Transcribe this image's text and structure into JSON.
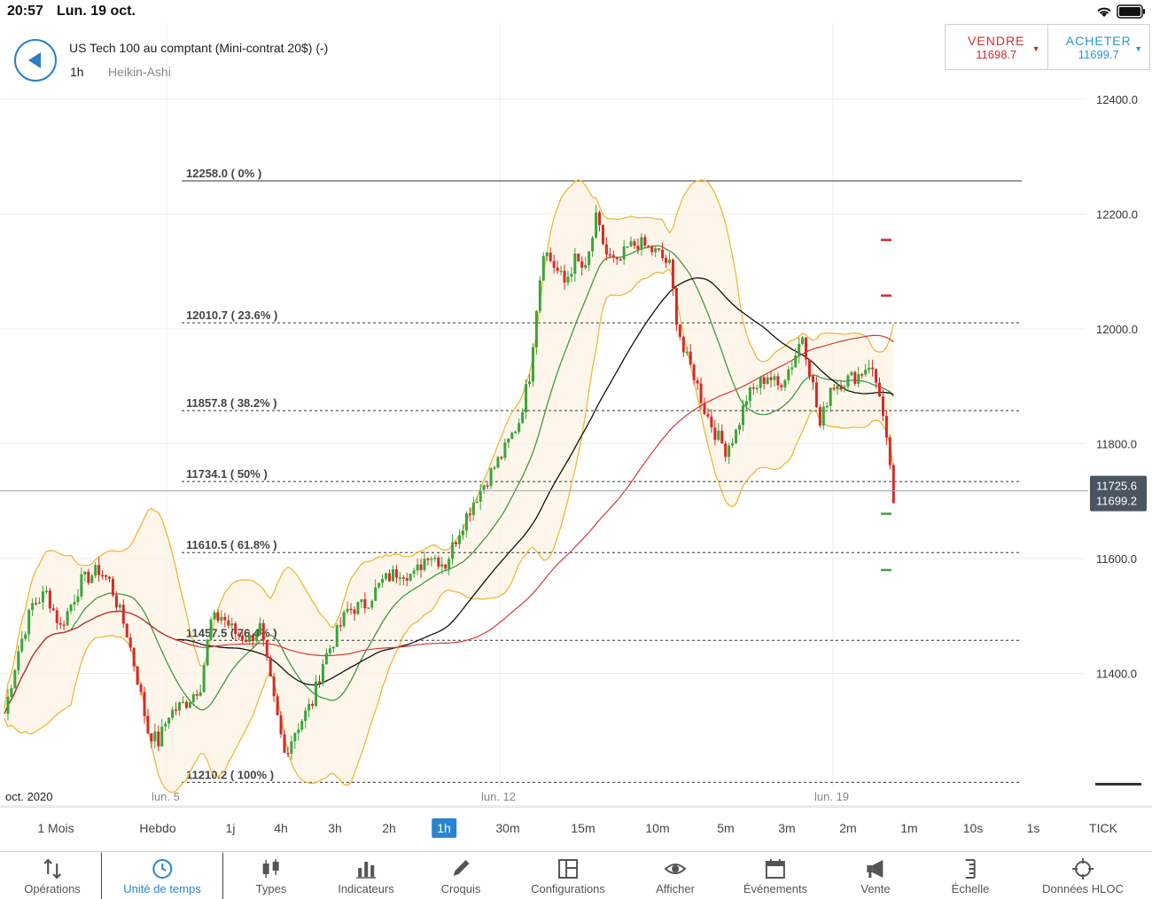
{
  "status": {
    "time": "20:57",
    "date": "Lun. 19 oct."
  },
  "instrument": {
    "name": "US Tech 100 au comptant (Mini-contrat 20$) (-)",
    "timeframe": "1h",
    "chart_type": "Heikin-Ashi"
  },
  "trade": {
    "sell": {
      "label": "VENDRE",
      "price": "11698.7"
    },
    "buy": {
      "label": "ACHETER",
      "price": "11699.7"
    }
  },
  "colors": {
    "accent": "#2a85d0",
    "sell": "#d42a2a",
    "buy": "#2a95d4",
    "candle_up": "#3aa53a",
    "candle_down": "#d42a2a",
    "bollinger": "#f0b22e",
    "ma_green": "#3f9a4a",
    "ma_black": "#111111",
    "ma_red": "#d43a3a"
  },
  "chart_data": {
    "type": "candlestick",
    "title": "US Tech 100 au comptant (Mini-contrat 20$) (-)",
    "ylim": [
      11200,
      12420
    ],
    "y_ticks": [
      "12400.0",
      "12200.0",
      "12000.0",
      "11800.0",
      "11600.0",
      "11400.0"
    ],
    "x_ticks": [
      "oct. 2020",
      "lun. 5",
      "lun. 12",
      "lun. 19"
    ],
    "current_price": {
      "top": "11725.6",
      "bottom": "11699.2"
    },
    "fibonacci_levels": [
      {
        "price": 12258.0,
        "label": "12258.0 ( 0% )"
      },
      {
        "price": 12010.7,
        "label": "12010.7 ( 23.6% )"
      },
      {
        "price": 11857.8,
        "label": "11857.8 ( 38.2% )"
      },
      {
        "price": 11734.1,
        "label": "11734.1 ( 50% )"
      },
      {
        "price": 11610.5,
        "label": "11610.5 ( 61.8% )"
      },
      {
        "price": 11457.5,
        "label": "11457.5 ( 76.4% )"
      },
      {
        "price": 11210.2,
        "label": "11210.2 ( 100% )"
      }
    ],
    "price_path": [
      [
        0,
        11330
      ],
      [
        4,
        11440
      ],
      [
        8,
        11520
      ],
      [
        12,
        11540
      ],
      [
        16,
        11480
      ],
      [
        22,
        11560
      ],
      [
        27,
        11580
      ],
      [
        30,
        11560
      ],
      [
        35,
        11470
      ],
      [
        38,
        11390
      ],
      [
        41,
        11300
      ],
      [
        44,
        11280
      ],
      [
        47,
        11330
      ],
      [
        52,
        11350
      ],
      [
        56,
        11380
      ],
      [
        59,
        11490
      ],
      [
        62,
        11500
      ],
      [
        66,
        11470
      ],
      [
        70,
        11460
      ],
      [
        73,
        11480
      ],
      [
        77,
        11350
      ],
      [
        80,
        11260
      ],
      [
        83,
        11300
      ],
      [
        88,
        11350
      ],
      [
        91,
        11420
      ],
      [
        95,
        11470
      ],
      [
        98,
        11510
      ],
      [
        103,
        11520
      ],
      [
        108,
        11560
      ],
      [
        113,
        11580
      ],
      [
        117,
        11570
      ],
      [
        121,
        11610
      ],
      [
        126,
        11590
      ],
      [
        130,
        11650
      ],
      [
        134,
        11700
      ],
      [
        139,
        11750
      ],
      [
        143,
        11790
      ],
      [
        147,
        11840
      ],
      [
        150,
        11920
      ],
      [
        152,
        12040
      ],
      [
        154,
        12140
      ],
      [
        157,
        12110
      ],
      [
        160,
        12080
      ],
      [
        163,
        12120
      ],
      [
        166,
        12100
      ],
      [
        169,
        12190
      ],
      [
        172,
        12130
      ],
      [
        175,
        12110
      ],
      [
        178,
        12140
      ],
      [
        181,
        12150
      ],
      [
        184,
        12140
      ],
      [
        187,
        12130
      ],
      [
        190,
        12110
      ],
      [
        192,
        12020
      ],
      [
        194,
        11960
      ],
      [
        197,
        11920
      ],
      [
        200,
        11860
      ],
      [
        203,
        11820
      ],
      [
        206,
        11790
      ],
      [
        209,
        11820
      ],
      [
        212,
        11880
      ],
      [
        215,
        11900
      ],
      [
        218,
        11920
      ],
      [
        221,
        11900
      ],
      [
        225,
        11940
      ],
      [
        228,
        11990
      ],
      [
        231,
        11900
      ],
      [
        233,
        11830
      ],
      [
        236,
        11900
      ],
      [
        240,
        11910
      ],
      [
        244,
        11920
      ],
      [
        247,
        11940
      ],
      [
        250,
        11890
      ],
      [
        252,
        11800
      ],
      [
        254,
        11700
      ]
    ]
  },
  "timeframes": [
    "1 Mois",
    "Hebdo",
    "1j",
    "4h",
    "3h",
    "2h",
    "1h",
    "30m",
    "15m",
    "10m",
    "5m",
    "3m",
    "2m",
    "1m",
    "10s",
    "1s",
    "TICK"
  ],
  "active_timeframe": "1h",
  "toolbar": [
    {
      "label": "Opérations",
      "icon": "arrows-updown-icon"
    },
    {
      "label": "Unité de temps",
      "icon": "clock-icon"
    },
    {
      "label": "Types",
      "icon": "candles-icon"
    },
    {
      "label": "Indicateurs",
      "icon": "bar-chart-icon"
    },
    {
      "label": "Croquis",
      "icon": "pencil-icon"
    },
    {
      "label": "Configurations",
      "icon": "layout-icon"
    },
    {
      "label": "Afficher",
      "icon": "eye-icon"
    },
    {
      "label": "Événements",
      "icon": "calendar-icon"
    },
    {
      "label": "Vente",
      "icon": "megaphone-icon"
    },
    {
      "label": "Échelle",
      "icon": "scale-icon"
    },
    {
      "label": "Données HLOC",
      "icon": "crosshair-icon"
    }
  ],
  "active_toolbar": "Unité de temps"
}
